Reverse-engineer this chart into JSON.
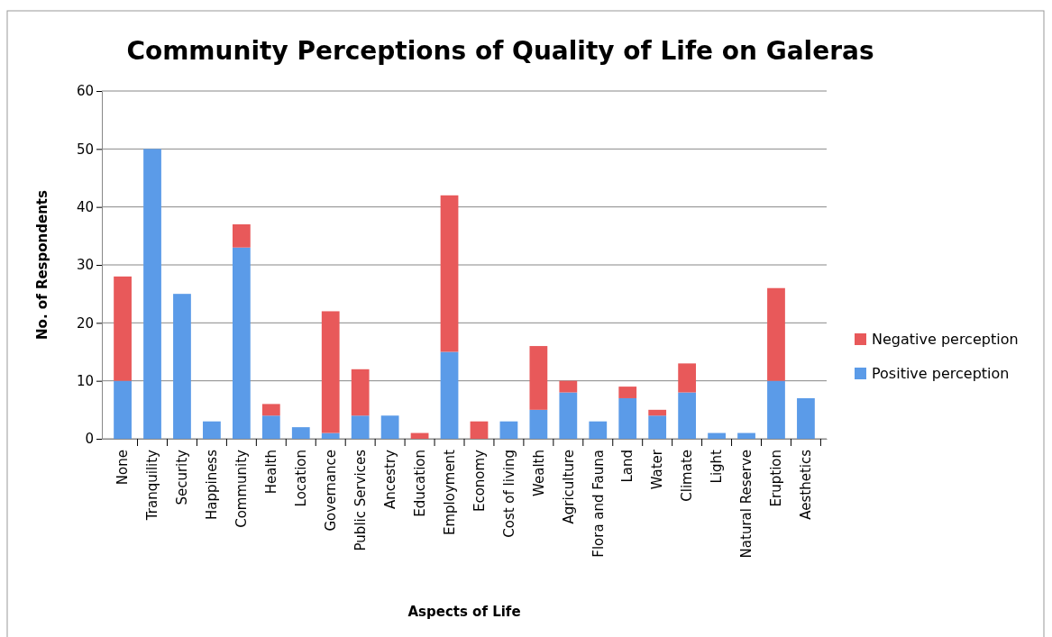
{
  "chart_data": {
    "type": "bar",
    "title": "Community Perceptions of Quality of Life on Galeras",
    "xlabel": "Aspects of Life",
    "ylabel": "No. of Respondents",
    "categories": [
      "None",
      "Tranquility",
      "Security",
      "Happiness",
      "Community",
      "Health",
      "Location",
      "Governance",
      "Public Services",
      "Ancestry",
      "Education",
      "Employment",
      "Economy",
      "Cost of living",
      "Wealth",
      "Agriculture",
      "Flora and Fauna",
      "Land",
      "Water",
      "Climate",
      "Light",
      "Natural Reserve",
      "Eruption",
      "Aesthetics"
    ],
    "stacked": true,
    "series": [
      {
        "name": "Positive perception",
        "color": "#5b9be8",
        "values": [
          10,
          50,
          25,
          3,
          33,
          4,
          2,
          1,
          4,
          4,
          0,
          15,
          0,
          3,
          5,
          8,
          3,
          7,
          4,
          8,
          1,
          1,
          10,
          7
        ]
      },
      {
        "name": "Negative perception",
        "color": "#e8595a",
        "values": [
          18,
          0,
          0,
          0,
          4,
          2,
          0,
          21,
          8,
          0,
          1,
          27,
          3,
          0,
          11,
          2,
          0,
          2,
          1,
          5,
          0,
          0,
          16,
          0
        ]
      }
    ],
    "ylim": [
      0,
      60
    ],
    "yticks": [
      0,
      10,
      20,
      30,
      40,
      50,
      60
    ],
    "grid": "y",
    "legend": "right"
  }
}
